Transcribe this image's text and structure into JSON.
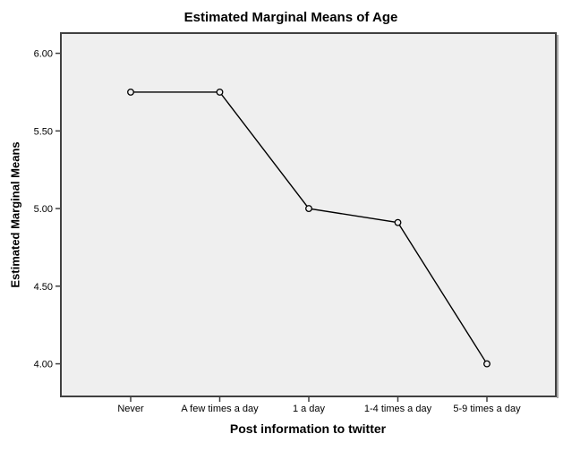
{
  "chart_data": {
    "type": "line",
    "title": "Estimated Marginal Means of Age",
    "xlabel": "Post information to twitter",
    "ylabel": "Estimated Marginal Means",
    "categories": [
      "Never",
      "A few times a day",
      "1 a day",
      "1-4 times a day",
      "5-9 times a day"
    ],
    "values": [
      5.75,
      5.75,
      5.0,
      4.91,
      4.0
    ],
    "yticks": [
      6.0,
      5.5,
      5.0,
      4.5,
      4.0
    ],
    "ytick_labels": [
      "6.00",
      "5.50",
      "5.00",
      "4.50",
      "4.00"
    ],
    "ylim": [
      3.79,
      6.13
    ],
    "grid": false,
    "legend": "none",
    "marker": "open-circle",
    "colors": {
      "line": "#000000",
      "marker_stroke": "#000000",
      "plot_background": "#EFEFEF",
      "frame": "#404040",
      "shadow": "#A8A8A8",
      "text": "#000000",
      "outer_background": "#FFFFFF"
    }
  }
}
